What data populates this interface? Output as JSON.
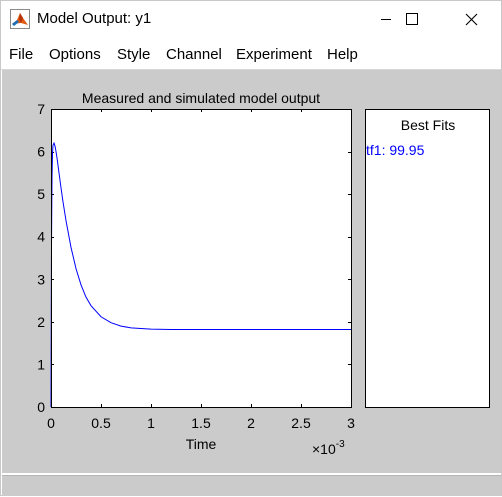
{
  "window": {
    "title": "Model Output: y1",
    "icon": "matlab-icon",
    "controls": [
      "minimize-icon",
      "maximize-icon",
      "close-icon"
    ]
  },
  "menu": [
    "File",
    "Options",
    "Style",
    "Channel",
    "Experiment",
    "Help"
  ],
  "best_fits": {
    "title": "Best Fits",
    "entries": [
      {
        "label": "tf1: 99.95",
        "color": "#0000ff"
      }
    ]
  },
  "chart_data": {
    "type": "line",
    "title": "Measured and simulated model output",
    "xlabel": "Time",
    "ylabel": "",
    "x_exponent_label": "×10",
    "x_exponent": "-3",
    "xlim": [
      0,
      0.003
    ],
    "ylim": [
      0,
      7
    ],
    "x_tick_labels": [
      "0",
      "0.5",
      "1",
      "1.5",
      "2",
      "2.5",
      "3"
    ],
    "x_ticks": [
      0,
      0.0005,
      0.001,
      0.0015,
      0.002,
      0.0025,
      0.003
    ],
    "y_ticks": [
      0,
      1,
      2,
      3,
      4,
      5,
      6,
      7
    ],
    "grid": false,
    "series": [
      {
        "name": "tf1",
        "color": "#0000ff",
        "x": [
          0,
          5e-06,
          1e-05,
          1.5e-05,
          2e-05,
          3e-05,
          4e-05,
          5e-05,
          6e-05,
          8e-05,
          0.0001,
          0.00012,
          0.00015,
          0.0002,
          0.00025,
          0.0003,
          0.00035,
          0.0004,
          0.0005,
          0.0006,
          0.0007,
          0.0008,
          0.001,
          0.0012,
          0.0015,
          0.002,
          0.0025,
          0.003
        ],
        "y": [
          0,
          3.8,
          5.4,
          5.95,
          6.15,
          6.2,
          6.13,
          6.0,
          5.85,
          5.5,
          5.15,
          4.82,
          4.38,
          3.75,
          3.25,
          2.87,
          2.58,
          2.38,
          2.12,
          1.98,
          1.9,
          1.86,
          1.83,
          1.82,
          1.82,
          1.82,
          1.82,
          1.82
        ]
      }
    ]
  }
}
